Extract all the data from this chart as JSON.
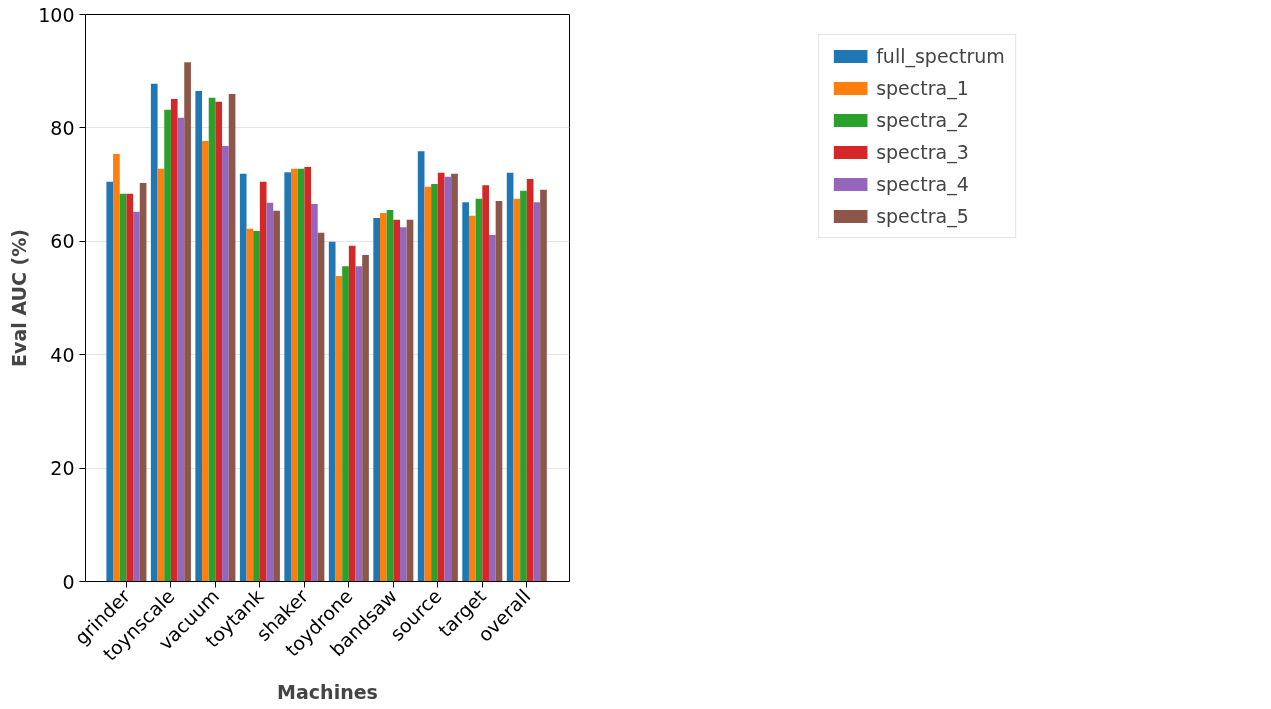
{
  "chart_data": {
    "type": "bar",
    "xlabel": "Machines",
    "ylabel": "Eval AUC (%)",
    "categories": [
      "grinder",
      "toynscale",
      "vacuum",
      "toytank",
      "shaker",
      "toydrone",
      "bandsaw",
      "source",
      "target",
      "overall"
    ],
    "series": [
      {
        "name": "full_spectrum",
        "color": "#1f77b4",
        "values": [
          70.5,
          87.8,
          86.5,
          71.9,
          72.2,
          59.9,
          64.1,
          75.9,
          66.9,
          72.1
        ]
      },
      {
        "name": "spectra_1",
        "color": "#ff7f0e",
        "values": [
          75.4,
          72.8,
          77.7,
          62.2,
          72.8,
          53.9,
          65.0,
          69.6,
          64.5,
          67.5
        ]
      },
      {
        "name": "spectra_2",
        "color": "#2ca02c",
        "values": [
          68.4,
          83.2,
          85.3,
          61.8,
          72.8,
          55.6,
          65.5,
          70.1,
          67.5,
          68.9
        ]
      },
      {
        "name": "spectra_3",
        "color": "#d62728",
        "values": [
          68.4,
          85.1,
          84.6,
          70.5,
          73.1,
          59.2,
          63.8,
          72.1,
          69.9,
          71.0
        ]
      },
      {
        "name": "spectra_4",
        "color": "#9467bd",
        "values": [
          65.2,
          81.8,
          76.8,
          66.8,
          66.6,
          55.6,
          62.5,
          71.4,
          61.1,
          66.9
        ]
      },
      {
        "name": "spectra_5",
        "color": "#8c564b",
        "values": [
          70.3,
          91.6,
          86.0,
          65.4,
          61.5,
          57.6,
          63.8,
          71.9,
          67.1,
          69.1
        ]
      }
    ],
    "ylim": [
      0,
      100
    ],
    "yticks": [
      0,
      20,
      40,
      60,
      80,
      100
    ],
    "grid": "y",
    "legend": "top right"
  }
}
